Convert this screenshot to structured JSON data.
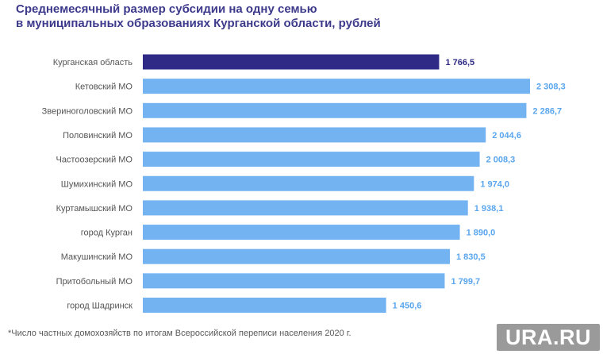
{
  "chart_data": {
    "type": "bar",
    "orientation": "horizontal",
    "title_lines": [
      "Среднемесячный размер субсидии на одну семью",
      "в муниципальных образованиях Курганской области, рублей"
    ],
    "categories": [
      "Курганская область",
      "Кетовский МО",
      "Звериноголовский МО",
      "Половинский МО",
      "Частоозерский МО",
      "Шумихинский МО",
      "Куртамышский МО",
      "город Курган",
      "Макушинский МО",
      "Притобольный МО",
      "город Шадринск"
    ],
    "values": [
      1766.5,
      2308.3,
      2286.7,
      2044.6,
      2008.3,
      1974.0,
      1938.1,
      1890.0,
      1830.5,
      1799.7,
      1450.6
    ],
    "value_labels": [
      "1 766,5",
      "2 308,3",
      "2 286,7",
      "2 044,6",
      "2 008,3",
      "1 974,0",
      "1 938,1",
      "1 890,0",
      "1 830,5",
      "1 799,7",
      "1 450,6"
    ],
    "highlight_index": 0,
    "colors": {
      "highlight": "#2e2a85",
      "bar": "#74b3f2",
      "highlight_label": "#2e2a85",
      "bar_label": "#5aa6ef",
      "category_label": "#555555",
      "title": "#3d3a8c"
    },
    "xlim": [
      0,
      2308.3
    ],
    "grid": false,
    "legend": "none"
  },
  "footnote": "*Число частных домохозяйств по итогам Всероссийской переписи населения 2020 г.",
  "watermark": "URA.RU"
}
